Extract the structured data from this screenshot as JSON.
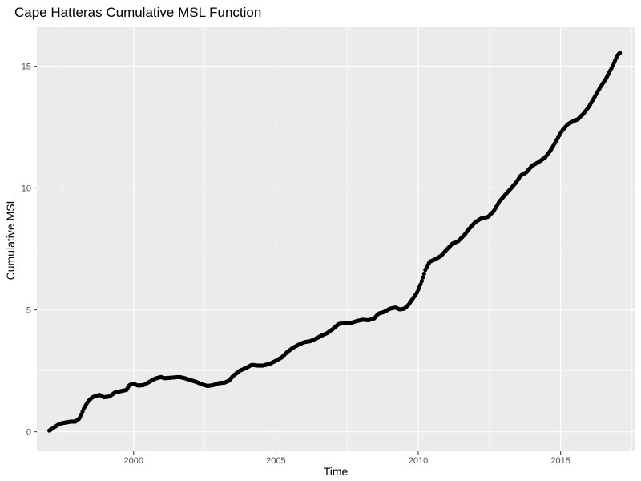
{
  "chart_data": {
    "type": "scatter",
    "title": "Cape Hatteras Cumulative MSL Function",
    "xlabel": "Time",
    "ylabel": "Cumulative MSL",
    "xlim": [
      1996.6,
      2017.6
    ],
    "ylim": [
      -0.8,
      16.6
    ],
    "x_ticks": [
      2000,
      2005,
      2010,
      2015
    ],
    "y_ticks": [
      0,
      5,
      10,
      15
    ],
    "x_tick_labels": [
      "2000",
      "2005",
      "2010",
      "2015"
    ],
    "y_tick_labels": [
      "0",
      "5",
      "10",
      "15"
    ],
    "grid": true,
    "legend": "none",
    "colors": {
      "panel": "#ebebeb",
      "grid_major": "#ffffff",
      "point": "#000000"
    },
    "anchors": [
      [
        1997.04,
        0.05
      ],
      [
        1997.2,
        0.18
      ],
      [
        1997.4,
        0.33
      ],
      [
        1997.6,
        0.38
      ],
      [
        1997.8,
        0.42
      ],
      [
        1997.95,
        0.42
      ],
      [
        1998.1,
        0.55
      ],
      [
        1998.25,
        0.95
      ],
      [
        1998.4,
        1.25
      ],
      [
        1998.55,
        1.42
      ],
      [
        1998.8,
        1.52
      ],
      [
        1998.95,
        1.42
      ],
      [
        1999.15,
        1.45
      ],
      [
        1999.35,
        1.62
      ],
      [
        1999.6,
        1.68
      ],
      [
        1999.75,
        1.72
      ],
      [
        1999.85,
        1.92
      ],
      [
        2000.0,
        1.97
      ],
      [
        2000.15,
        1.9
      ],
      [
        2000.35,
        1.92
      ],
      [
        2000.55,
        2.05
      ],
      [
        2000.75,
        2.18
      ],
      [
        2000.95,
        2.25
      ],
      [
        2001.1,
        2.2
      ],
      [
        2001.3,
        2.22
      ],
      [
        2001.6,
        2.25
      ],
      [
        2001.8,
        2.2
      ],
      [
        2002.0,
        2.12
      ],
      [
        2002.2,
        2.05
      ],
      [
        2002.4,
        1.95
      ],
      [
        2002.6,
        1.88
      ],
      [
        2002.8,
        1.92
      ],
      [
        2003.0,
        2.0
      ],
      [
        2003.2,
        2.02
      ],
      [
        2003.35,
        2.1
      ],
      [
        2003.5,
        2.3
      ],
      [
        2003.75,
        2.52
      ],
      [
        2003.95,
        2.62
      ],
      [
        2004.15,
        2.75
      ],
      [
        2004.35,
        2.72
      ],
      [
        2004.55,
        2.72
      ],
      [
        2004.8,
        2.8
      ],
      [
        2005.0,
        2.92
      ],
      [
        2005.2,
        3.05
      ],
      [
        2005.4,
        3.28
      ],
      [
        2005.6,
        3.45
      ],
      [
        2005.8,
        3.58
      ],
      [
        2006.0,
        3.68
      ],
      [
        2006.2,
        3.72
      ],
      [
        2006.4,
        3.82
      ],
      [
        2006.6,
        3.95
      ],
      [
        2006.8,
        4.05
      ],
      [
        2007.0,
        4.22
      ],
      [
        2007.2,
        4.42
      ],
      [
        2007.4,
        4.48
      ],
      [
        2007.6,
        4.45
      ],
      [
        2007.85,
        4.55
      ],
      [
        2008.05,
        4.6
      ],
      [
        2008.25,
        4.58
      ],
      [
        2008.45,
        4.65
      ],
      [
        2008.6,
        4.85
      ],
      [
        2008.8,
        4.92
      ],
      [
        2009.0,
        5.05
      ],
      [
        2009.2,
        5.1
      ],
      [
        2009.35,
        5.02
      ],
      [
        2009.5,
        5.05
      ],
      [
        2009.65,
        5.2
      ],
      [
        2009.8,
        5.45
      ],
      [
        2009.95,
        5.7
      ],
      [
        2010.1,
        6.1
      ],
      [
        2010.25,
        6.65
      ],
      [
        2010.4,
        6.98
      ],
      [
        2010.6,
        7.08
      ],
      [
        2010.8,
        7.22
      ],
      [
        2011.0,
        7.48
      ],
      [
        2011.2,
        7.72
      ],
      [
        2011.4,
        7.82
      ],
      [
        2011.6,
        8.05
      ],
      [
        2011.8,
        8.35
      ],
      [
        2012.0,
        8.6
      ],
      [
        2012.2,
        8.75
      ],
      [
        2012.45,
        8.82
      ],
      [
        2012.65,
        9.05
      ],
      [
        2012.85,
        9.45
      ],
      [
        2013.05,
        9.72
      ],
      [
        2013.25,
        9.98
      ],
      [
        2013.45,
        10.25
      ],
      [
        2013.6,
        10.52
      ],
      [
        2013.8,
        10.65
      ],
      [
        2014.0,
        10.92
      ],
      [
        2014.2,
        11.05
      ],
      [
        2014.45,
        11.25
      ],
      [
        2014.65,
        11.55
      ],
      [
        2014.85,
        11.95
      ],
      [
        2015.05,
        12.35
      ],
      [
        2015.25,
        12.62
      ],
      [
        2015.45,
        12.75
      ],
      [
        2015.6,
        12.82
      ],
      [
        2015.8,
        13.05
      ],
      [
        2016.0,
        13.35
      ],
      [
        2016.2,
        13.75
      ],
      [
        2016.4,
        14.15
      ],
      [
        2016.6,
        14.5
      ],
      [
        2016.8,
        14.95
      ],
      [
        2017.0,
        15.45
      ],
      [
        2017.12,
        15.6
      ]
    ]
  }
}
